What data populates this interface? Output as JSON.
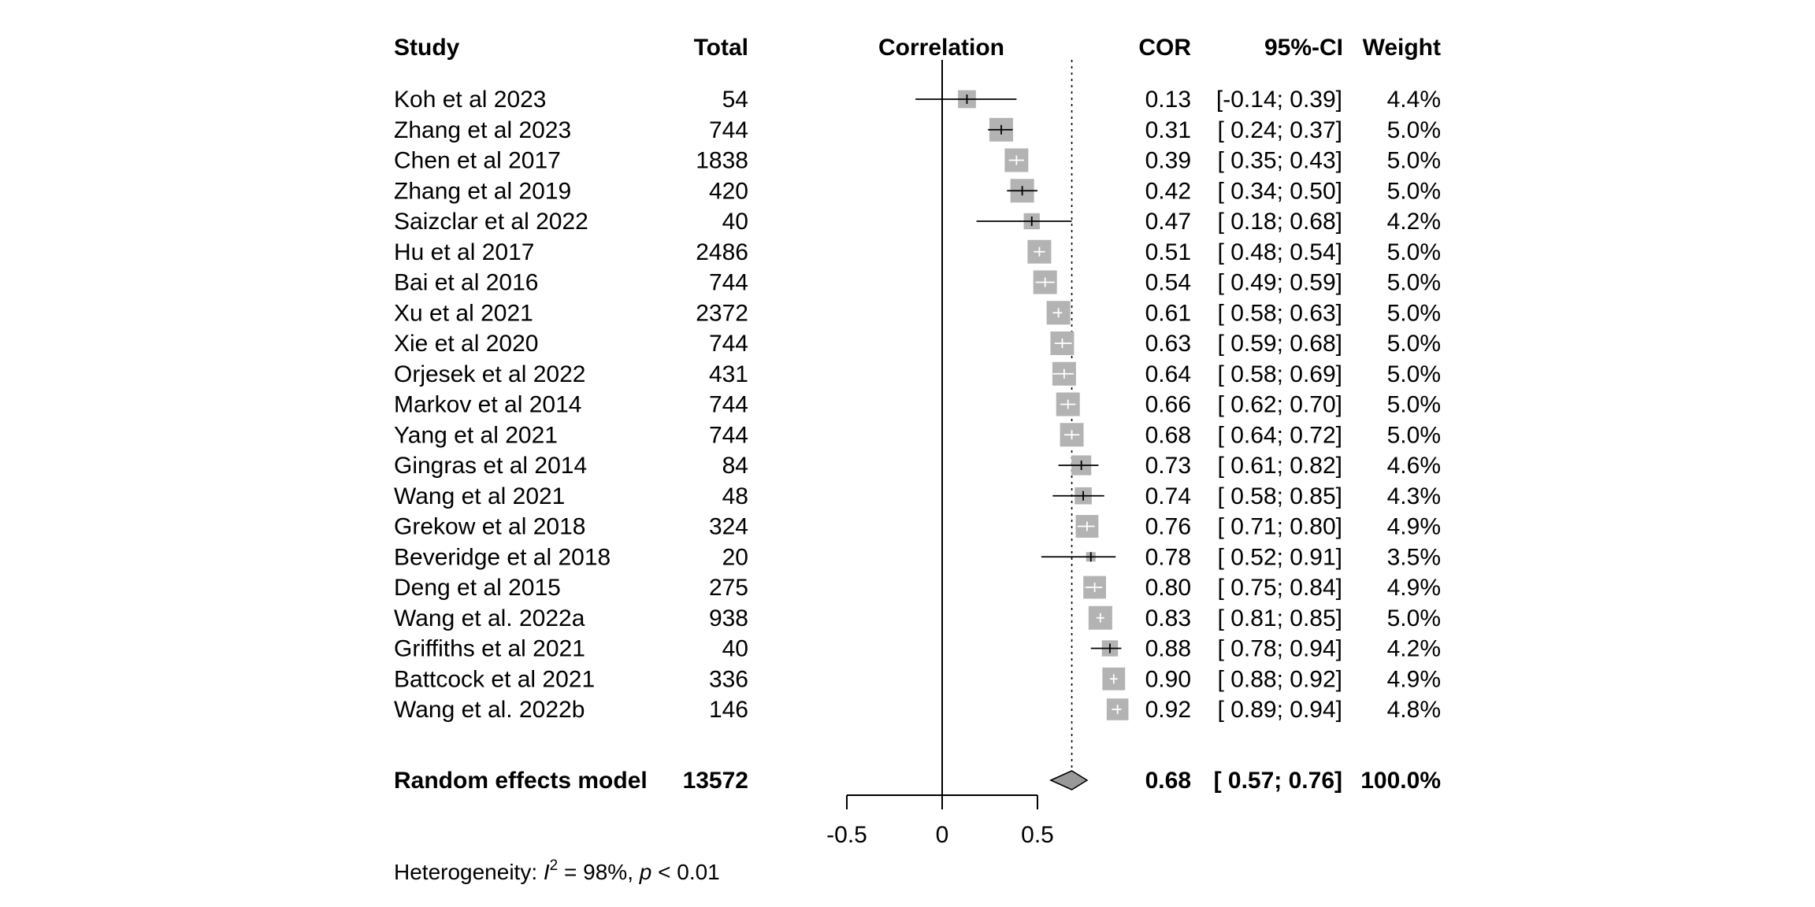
{
  "chart_data": {
    "type": "forest",
    "columns": {
      "study": "Study",
      "total": "Total",
      "plot": "Correlation",
      "estimate": "COR",
      "ci": "95%-CI",
      "weight": "Weight"
    },
    "x_ticks": [
      "-0.5",
      "0",
      "0.5"
    ],
    "xlim": [
      -0.5,
      0.5
    ],
    "pooled_reference": 0.68,
    "studies": [
      {
        "study": "Koh et al 2023",
        "total": "54",
        "cor": 0.13,
        "lo": -0.14,
        "hi": 0.39,
        "estimate": "0.13",
        "ci": "[-0.14; 0.39]",
        "weight": "4.4%",
        "w": 4.4
      },
      {
        "study": "Zhang et al 2023",
        "total": "744",
        "cor": 0.31,
        "lo": 0.24,
        "hi": 0.37,
        "estimate": "0.31",
        "ci": "[ 0.24; 0.37]",
        "weight": "5.0%",
        "w": 5.0
      },
      {
        "study": "Chen et al 2017",
        "total": "1838",
        "cor": 0.39,
        "lo": 0.35,
        "hi": 0.43,
        "estimate": "0.39",
        "ci": "[ 0.35; 0.43]",
        "weight": "5.0%",
        "w": 5.0
      },
      {
        "study": "Zhang et al 2019",
        "total": "420",
        "cor": 0.42,
        "lo": 0.34,
        "hi": 0.5,
        "estimate": "0.42",
        "ci": "[ 0.34; 0.50]",
        "weight": "5.0%",
        "w": 5.0
      },
      {
        "study": "Saizclar et al 2022",
        "total": "40",
        "cor": 0.47,
        "lo": 0.18,
        "hi": 0.68,
        "estimate": "0.47",
        "ci": "[ 0.18; 0.68]",
        "weight": "4.2%",
        "w": 4.2
      },
      {
        "study": "Hu et al 2017",
        "total": "2486",
        "cor": 0.51,
        "lo": 0.48,
        "hi": 0.54,
        "estimate": "0.51",
        "ci": "[ 0.48; 0.54]",
        "weight": "5.0%",
        "w": 5.0
      },
      {
        "study": "Bai et al 2016",
        "total": "744",
        "cor": 0.54,
        "lo": 0.49,
        "hi": 0.59,
        "estimate": "0.54",
        "ci": "[ 0.49; 0.59]",
        "weight": "5.0%",
        "w": 5.0
      },
      {
        "study": "Xu et al 2021",
        "total": "2372",
        "cor": 0.61,
        "lo": 0.58,
        "hi": 0.63,
        "estimate": "0.61",
        "ci": "[ 0.58; 0.63]",
        "weight": "5.0%",
        "w": 5.0
      },
      {
        "study": "Xie et al 2020",
        "total": "744",
        "cor": 0.63,
        "lo": 0.59,
        "hi": 0.68,
        "estimate": "0.63",
        "ci": "[ 0.59; 0.68]",
        "weight": "5.0%",
        "w": 5.0
      },
      {
        "study": "Orjesek et al 2022",
        "total": "431",
        "cor": 0.64,
        "lo": 0.58,
        "hi": 0.69,
        "estimate": "0.64",
        "ci": "[ 0.58; 0.69]",
        "weight": "5.0%",
        "w": 5.0
      },
      {
        "study": "Markov et al 2014",
        "total": "744",
        "cor": 0.66,
        "lo": 0.62,
        "hi": 0.7,
        "estimate": "0.66",
        "ci": "[ 0.62; 0.70]",
        "weight": "5.0%",
        "w": 5.0
      },
      {
        "study": "Yang et al 2021",
        "total": "744",
        "cor": 0.68,
        "lo": 0.64,
        "hi": 0.72,
        "estimate": "0.68",
        "ci": "[ 0.64; 0.72]",
        "weight": "5.0%",
        "w": 5.0
      },
      {
        "study": "Gingras et al 2014",
        "total": "84",
        "cor": 0.73,
        "lo": 0.61,
        "hi": 0.82,
        "estimate": "0.73",
        "ci": "[ 0.61; 0.82]",
        "weight": "4.6%",
        "w": 4.6
      },
      {
        "study": "Wang et al 2021",
        "total": "48",
        "cor": 0.74,
        "lo": 0.58,
        "hi": 0.85,
        "estimate": "0.74",
        "ci": "[ 0.58; 0.85]",
        "weight": "4.3%",
        "w": 4.3
      },
      {
        "study": "Grekow et al 2018",
        "total": "324",
        "cor": 0.76,
        "lo": 0.71,
        "hi": 0.8,
        "estimate": "0.76",
        "ci": "[ 0.71; 0.80]",
        "weight": "4.9%",
        "w": 4.9
      },
      {
        "study": "Beveridge et al 2018",
        "total": "20",
        "cor": 0.78,
        "lo": 0.52,
        "hi": 0.91,
        "estimate": "0.78",
        "ci": "[ 0.52; 0.91]",
        "weight": "3.5%",
        "w": 3.5
      },
      {
        "study": "Deng et al 2015",
        "total": "275",
        "cor": 0.8,
        "lo": 0.75,
        "hi": 0.84,
        "estimate": "0.80",
        "ci": "[ 0.75; 0.84]",
        "weight": "4.9%",
        "w": 4.9
      },
      {
        "study": "Wang et al. 2022a",
        "total": "938",
        "cor": 0.83,
        "lo": 0.81,
        "hi": 0.85,
        "estimate": "0.83",
        "ci": "[ 0.81; 0.85]",
        "weight": "5.0%",
        "w": 5.0
      },
      {
        "study": "Griffiths et al 2021",
        "total": "40",
        "cor": 0.88,
        "lo": 0.78,
        "hi": 0.94,
        "estimate": "0.88",
        "ci": "[ 0.78; 0.94]",
        "weight": "4.2%",
        "w": 4.2
      },
      {
        "study": "Battcock et al 2021",
        "total": "336",
        "cor": 0.9,
        "lo": 0.88,
        "hi": 0.92,
        "estimate": "0.90",
        "ci": "[ 0.88; 0.92]",
        "weight": "4.9%",
        "w": 4.9
      },
      {
        "study": "Wang et al. 2022b",
        "total": "146",
        "cor": 0.92,
        "lo": 0.89,
        "hi": 0.94,
        "estimate": "0.92",
        "ci": "[ 0.89; 0.94]",
        "weight": "4.8%",
        "w": 4.8
      }
    ],
    "pooled": {
      "study": "Random effects model",
      "total": "13572",
      "cor": 0.68,
      "lo": 0.57,
      "hi": 0.76,
      "estimate": "0.68",
      "ci": "[ 0.57; 0.76]",
      "weight": "100.0%"
    },
    "heterogeneity": {
      "prefix": "Heterogeneity: ",
      "i_symbol": "I",
      "i_sup": "2",
      "i_value": " = 98%, ",
      "p_symbol": "p",
      "p_value": " < 0.01"
    },
    "colors": {
      "box": "#b3b3b3",
      "diamond": "#999999",
      "line": "#000000",
      "inner_line": "#ffffff"
    }
  }
}
